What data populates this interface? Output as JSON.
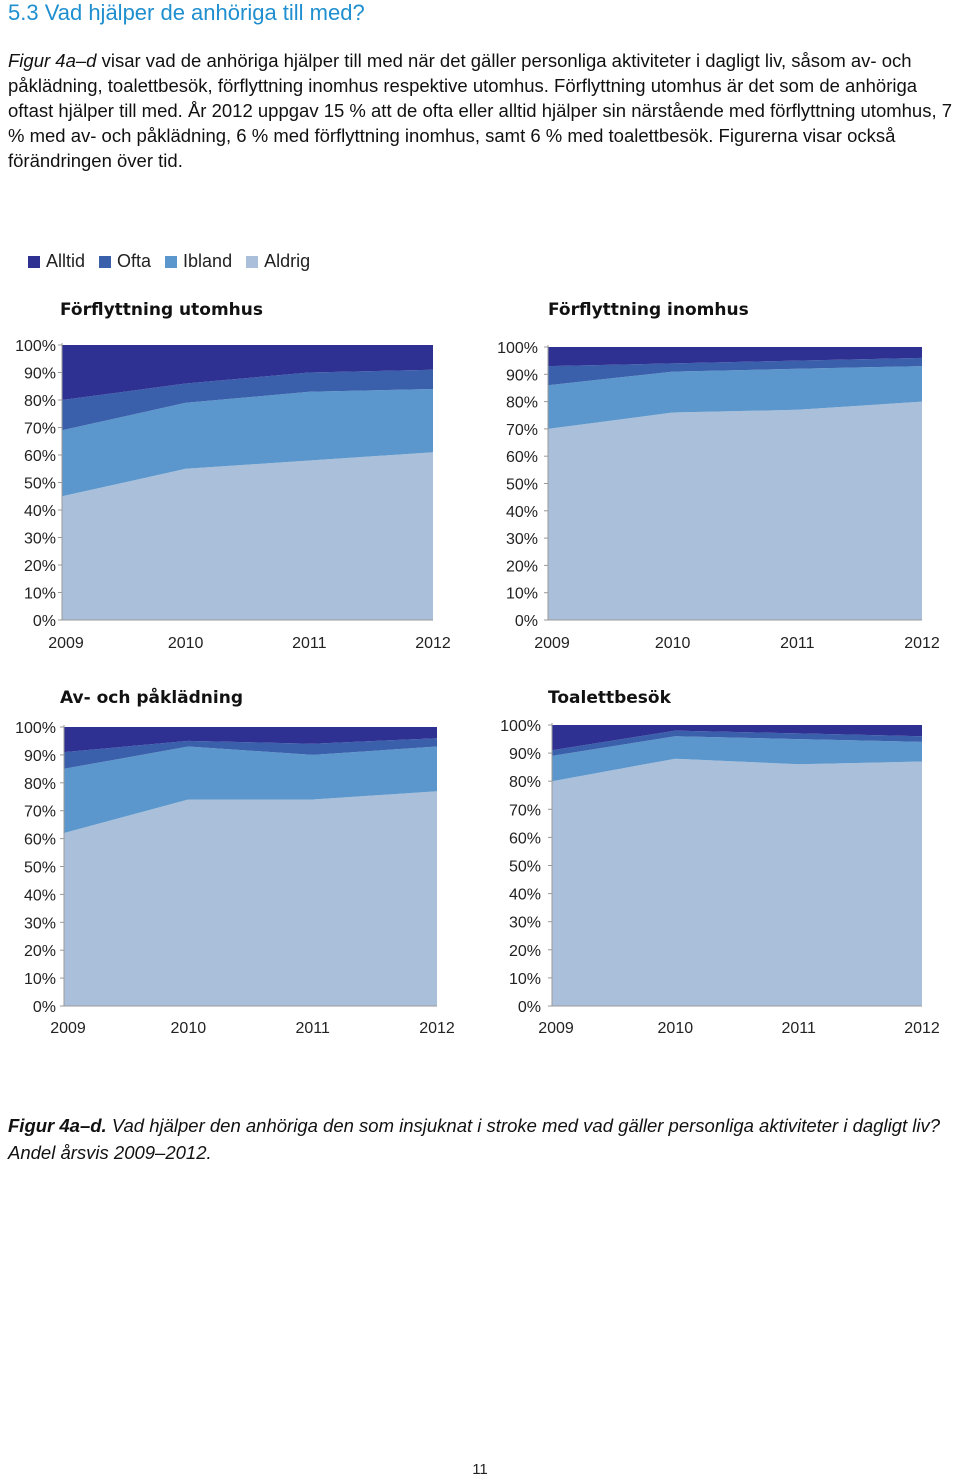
{
  "heading": "5.3 Vad hjälper de anhöriga till med?",
  "intro": {
    "fig_ref": "Figur 4a–d",
    "text": " visar vad de anhöriga hjälper till med när det gäller personliga aktiviteter i dagligt liv, såsom av- och påklädning, toalettbesök, förflyttning inomhus respektive utomhus. Förflyttning utomhus är det som de anhöriga oftast hjälper till med. År 2012 uppgav 15 % att de ofta eller alltid hjälper sin närstående med förflyttning utomhus, 7 % med av- och påklädning, 6 % med förflyttning inomhus, samt 6 % med toalettbesök. Figurerna visar också förändringen över tid."
  },
  "legend": [
    {
      "label": "Alltid",
      "color": "#2e3192"
    },
    {
      "label": "Ofta",
      "color": "#3a5fab"
    },
    {
      "label": "Ibland",
      "color": "#5b97cc"
    },
    {
      "label": "Aldrig",
      "color": "#aac0da"
    }
  ],
  "chart_data": [
    {
      "type": "area",
      "stacked": true,
      "title": "Förflyttning utomhus",
      "x": [
        "2009",
        "2010",
        "2011",
        "2012"
      ],
      "yticks": [
        "0%",
        "10%",
        "20%",
        "30%",
        "40%",
        "50%",
        "60%",
        "70%",
        "80%",
        "90%",
        "100%"
      ],
      "ylim": [
        0,
        100
      ],
      "series": [
        {
          "name": "Aldrig",
          "values": [
            45,
            55,
            58,
            61
          ]
        },
        {
          "name": "Ibland",
          "values": [
            24,
            24,
            25,
            23
          ]
        },
        {
          "name": "Ofta",
          "values": [
            11,
            7,
            7,
            7
          ]
        },
        {
          "name": "Alltid",
          "values": [
            20,
            14,
            10,
            9
          ]
        }
      ]
    },
    {
      "type": "area",
      "stacked": true,
      "title": "Förflyttning inomhus",
      "x": [
        "2009",
        "2010",
        "2011",
        "2012"
      ],
      "yticks": [
        "0%",
        "10%",
        "20%",
        "30%",
        "40%",
        "50%",
        "60%",
        "70%",
        "80%",
        "90%",
        "100%"
      ],
      "ylim": [
        0,
        100
      ],
      "series": [
        {
          "name": "Aldrig",
          "values": [
            70,
            76,
            77,
            80
          ]
        },
        {
          "name": "Ibland",
          "values": [
            16,
            15,
            15,
            13
          ]
        },
        {
          "name": "Ofta",
          "values": [
            7,
            3,
            3,
            3
          ]
        },
        {
          "name": "Alltid",
          "values": [
            7,
            6,
            5,
            4
          ]
        }
      ]
    },
    {
      "type": "area",
      "stacked": true,
      "title": "Av- och påklädning",
      "x": [
        "2009",
        "2010",
        "2011",
        "2012"
      ],
      "yticks": [
        "0%",
        "10%",
        "20%",
        "30%",
        "40%",
        "50%",
        "60%",
        "70%",
        "80%",
        "90%",
        "100%"
      ],
      "ylim": [
        0,
        100
      ],
      "series": [
        {
          "name": "Aldrig",
          "values": [
            62,
            74,
            74,
            77
          ]
        },
        {
          "name": "Ibland",
          "values": [
            23,
            19,
            16,
            16
          ]
        },
        {
          "name": "Ofta",
          "values": [
            6,
            2,
            4,
            3
          ]
        },
        {
          "name": "Alltid",
          "values": [
            9,
            5,
            6,
            4
          ]
        }
      ]
    },
    {
      "type": "area",
      "stacked": true,
      "title": "Toalettbesök",
      "x": [
        "2009",
        "2010",
        "2011",
        "2012"
      ],
      "yticks": [
        "0%",
        "10%",
        "20%",
        "30%",
        "40%",
        "50%",
        "60%",
        "70%",
        "80%",
        "90%",
        "100%"
      ],
      "ylim": [
        0,
        100
      ],
      "series": [
        {
          "name": "Aldrig",
          "values": [
            80,
            88,
            86,
            87
          ]
        },
        {
          "name": "Ibland",
          "values": [
            9,
            8,
            9,
            7
          ]
        },
        {
          "name": "Ofta",
          "values": [
            2,
            2,
            2,
            2
          ]
        },
        {
          "name": "Alltid",
          "values": [
            9,
            2,
            3,
            4
          ]
        }
      ]
    }
  ],
  "caption": {
    "label": "Figur 4a–d.",
    "text": " Vad hjälper den anhöriga den som insjuknat i stroke med vad gäller personliga aktiviteter i dagligt liv? Andel årsvis 2009–2012."
  },
  "page_number": "11"
}
